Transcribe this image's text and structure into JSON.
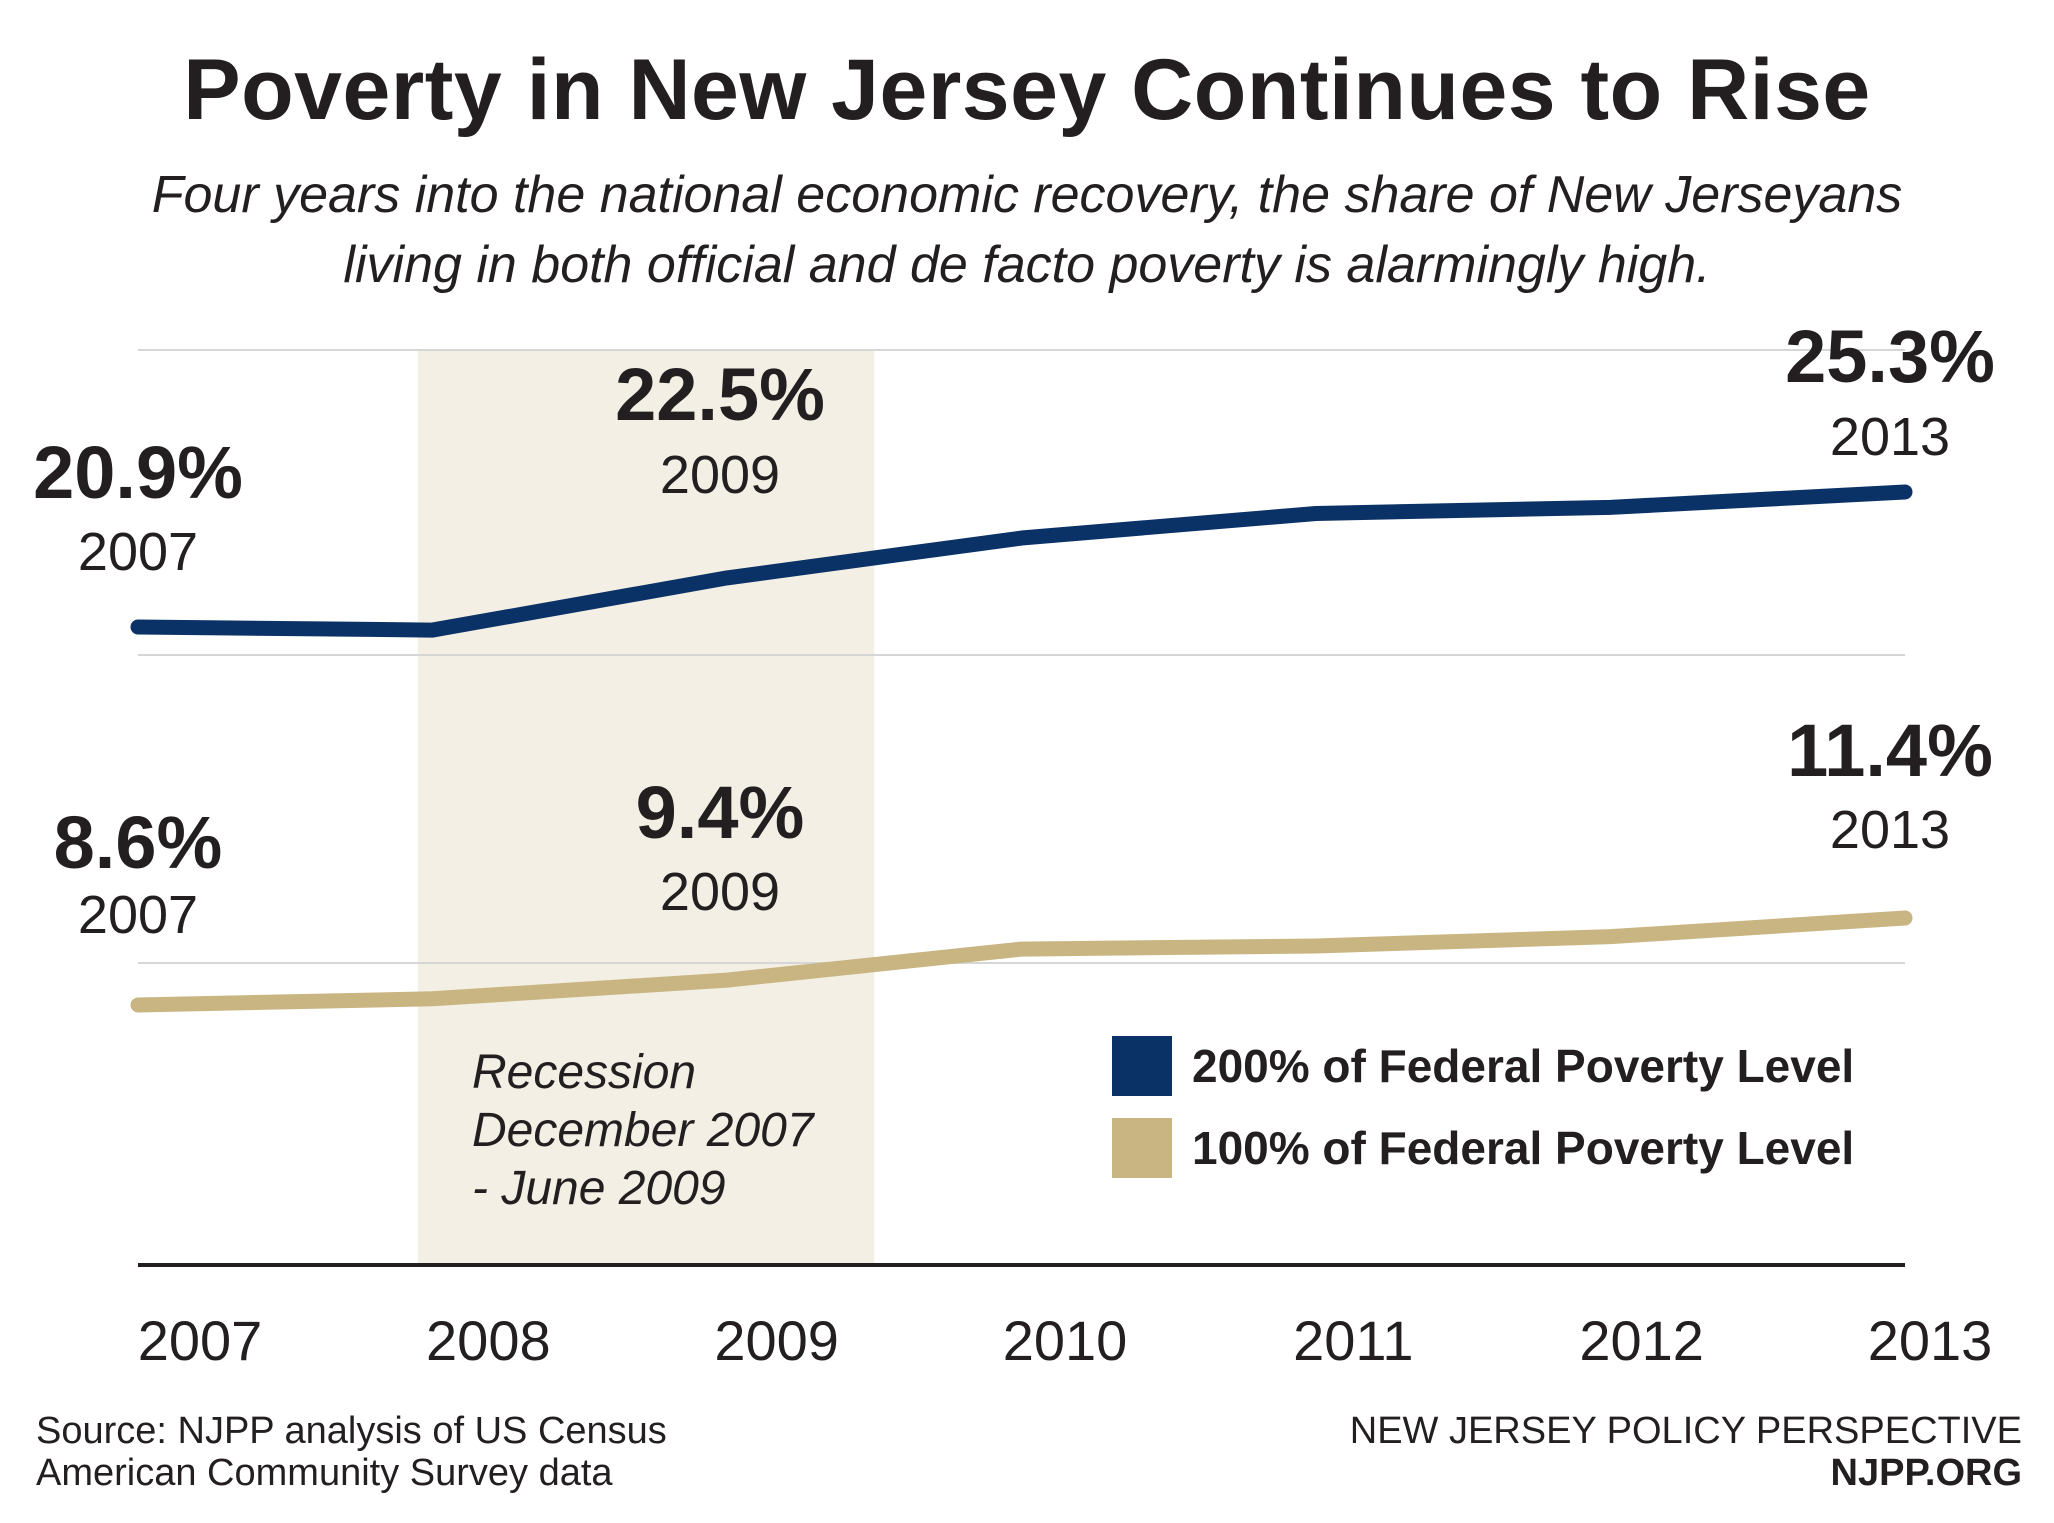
{
  "header": {
    "title": "Poverty in New Jersey Continues to Rise",
    "subtitle_line1": "Four years into the national economic recovery, the share of New Jerseyans",
    "subtitle_line2": "living in both official and de facto poverty is alarmingly high."
  },
  "chart_data": {
    "type": "line",
    "title": "Poverty in New Jersey Continues to Rise",
    "x": [
      "2007",
      "2008",
      "2009",
      "2010",
      "2011",
      "2012",
      "2013"
    ],
    "series": [
      {
        "name": "200% of Federal Poverty Level",
        "color": "#0b3266",
        "values": [
          20.9,
          20.8,
          22.5,
          23.8,
          24.6,
          24.8,
          25.3
        ]
      },
      {
        "name": "100% of Federal Poverty Level",
        "color": "#c8b582",
        "values": [
          8.6,
          8.8,
          9.4,
          10.4,
          10.5,
          10.8,
          11.4
        ]
      }
    ],
    "annotations": [
      {
        "series": 0,
        "index": 0,
        "value_label": "20.9%",
        "year_label": "2007"
      },
      {
        "series": 0,
        "index": 2,
        "value_label": "22.5%",
        "year_label": "2009"
      },
      {
        "series": 0,
        "index": 6,
        "value_label": "25.3%",
        "year_label": "2013"
      },
      {
        "series": 1,
        "index": 0,
        "value_label": "8.6%",
        "year_label": "2007"
      },
      {
        "series": 1,
        "index": 2,
        "value_label": "9.4%",
        "year_label": "2009"
      },
      {
        "series": 1,
        "index": 6,
        "value_label": "11.4%",
        "year_label": "2013"
      }
    ],
    "recession": {
      "start_x": 2007.95,
      "end_x": 2009.5,
      "label_lines": [
        "Recession",
        "December 2007",
        "- June 2009"
      ],
      "color": "#f3efe5"
    },
    "ylim": [
      0,
      30
    ],
    "grid": true,
    "legend_position": "bottom-right",
    "xlabel": "",
    "ylabel": ""
  },
  "footer": {
    "source_line1": "Source: NJPP analysis of US Census",
    "source_line2": "American Community Survey data",
    "org_line1": "NEW JERSEY POLICY PERSPECTIVE",
    "org_line2": "NJPP.ORG"
  }
}
